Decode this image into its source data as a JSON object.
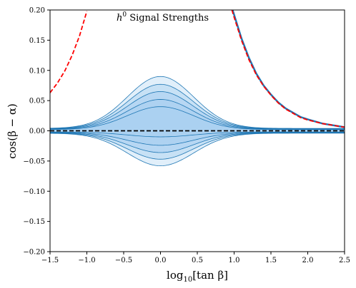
{
  "chart_data": {
    "type": "area",
    "title_prefix": "h",
    "title_sup": "0",
    "title_rest": " Signal Strengths",
    "xlabel_pre": "log",
    "xlabel_sub": "10",
    "xlabel_post": "[tan β]",
    "ylabel": "cos(β − α)",
    "xlim": [
      -1.5,
      2.5
    ],
    "ylim": [
      -0.2,
      0.2
    ],
    "x_ticks": [
      -1.5,
      -1.0,
      -0.5,
      0.0,
      0.5,
      1.0,
      1.5,
      2.0,
      2.5
    ],
    "x_tick_labels": [
      "−1.5",
      "−1.0",
      "−0.5",
      "0.0",
      "0.5",
      "1.0",
      "1.5",
      "2.0",
      "2.5"
    ],
    "y_ticks": [
      -0.2,
      -0.15,
      -0.1,
      -0.05,
      0.0,
      0.05,
      0.1,
      0.15,
      0.2
    ],
    "y_tick_labels": [
      "−0.20",
      "−0.15",
      "−0.10",
      "−0.05",
      "0.00",
      "0.05",
      "0.10",
      "0.15",
      "0.20"
    ],
    "bands": [
      {
        "upper_peak": 0.09,
        "lower_peak": -0.058,
        "edge": 0.004,
        "opacity": 0.35
      },
      {
        "upper_peak": 0.077,
        "lower_peak": -0.047,
        "edge": 0.0035,
        "opacity": 0.45
      },
      {
        "upper_peak": 0.065,
        "lower_peak": -0.036,
        "edge": 0.003,
        "opacity": 0.55
      },
      {
        "upper_peak": 0.052,
        "lower_peak": -0.024,
        "edge": 0.0025,
        "opacity": 0.65
      },
      {
        "upper_peak": 0.04,
        "lower_peak": -0.01,
        "edge": 0.002,
        "opacity": 0.75
      }
    ],
    "band_width": 0.45,
    "band_color": "#1f77b4",
    "fill_color": "#a9d0f0",
    "red_curve_color": "#ff0000",
    "blue_curve_color": "#1f77b4",
    "alignment_line_color": "#000000",
    "alignment_line_y": 0.0,
    "red_left_curve": {
      "x": [
        -1.5,
        -1.4,
        -1.3,
        -1.2,
        -1.1,
        -1.0
      ],
      "y": [
        0.063,
        0.079,
        0.099,
        0.125,
        0.157,
        0.198
      ]
    },
    "right_curve_red": {
      "x": [
        0.97,
        1.0,
        1.1,
        1.2,
        1.3,
        1.4,
        1.5,
        1.6,
        1.7,
        1.8,
        1.9,
        2.0,
        2.2,
        2.5
      ],
      "y": [
        0.2,
        0.188,
        0.15,
        0.118,
        0.093,
        0.074,
        0.059,
        0.046,
        0.036,
        0.029,
        0.022,
        0.018,
        0.012,
        0.006
      ]
    },
    "right_curve_blue": {
      "x": [
        0.98,
        1.0,
        1.1,
        1.2,
        1.3,
        1.4,
        1.5,
        1.6,
        1.7,
        1.8,
        1.9,
        2.0,
        2.2,
        2.5
      ],
      "y": [
        0.2,
        0.192,
        0.153,
        0.121,
        0.095,
        0.075,
        0.06,
        0.047,
        0.037,
        0.03,
        0.023,
        0.019,
        0.012,
        0.006
      ]
    },
    "grid": false
  }
}
